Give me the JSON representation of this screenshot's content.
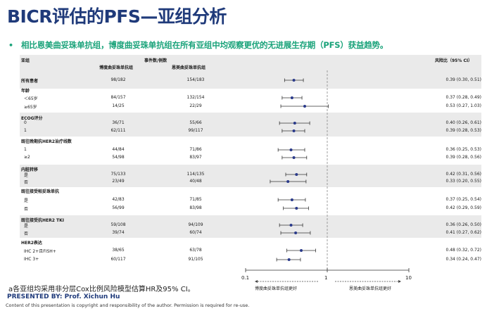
{
  "title": "BICR评估的PFS—亚组分析",
  "bullet": {
    "marker": "•",
    "text": "相比恩美曲妥珠单抗组，博度曲妥珠单抗组在所有亚组中均观察更优的无进展生存期（PFS）获益趋势。"
  },
  "table_header": {
    "subgroup": "亚组",
    "events": "事件数/例数",
    "arm1": "博度曲妥珠单抗组",
    "arm2": "恩美曲妥珠单抗组",
    "hr": "风险比（95% CI）"
  },
  "rows": [
    {
      "label": "所有患者",
      "bold": true,
      "arm1": "98/182",
      "arm2": "154/183",
      "hr_text": "0.39 (0.30, 0.51)",
      "band": 0
    },
    {
      "label": "年龄",
      "bold": true,
      "band": 1
    },
    {
      "label": "＜65岁",
      "arm1": "84/157",
      "arm2": "132/154",
      "hr_text": "0.37 (0.28, 0.49)",
      "band": 1
    },
    {
      "label": "≥65岁",
      "arm1": "14/25",
      "arm2": "22/29",
      "hr_text": "0.53 (0.27, 1.03)",
      "band": 1
    },
    {
      "label": "ECOG评分",
      "bold": true,
      "band": 2
    },
    {
      "label": "0",
      "arm1": "36/71",
      "arm2": "55/66",
      "hr_text": "0.40 (0.26, 0.61)",
      "band": 2
    },
    {
      "label": "1",
      "arm1": "62/111",
      "arm2": "99/117",
      "hr_text": "0.39 (0.28, 0.53)",
      "band": 2
    },
    {
      "label": "既往晚期抗HER2治疗线数",
      "bold": true,
      "band": 3
    },
    {
      "label": "1",
      "arm1": "44/84",
      "arm2": "71/86",
      "hr_text": "0.36 (0.25, 0.53)",
      "band": 3
    },
    {
      "label": "≥2",
      "arm1": "54/98",
      "arm2": "83/97",
      "hr_text": "0.39 (0.28, 0.56)",
      "band": 3
    },
    {
      "label": "内脏转移",
      "bold": true,
      "band": 4
    },
    {
      "label": "是",
      "arm1": "75/133",
      "arm2": "114/135",
      "hr_text": "0.42 (0.31, 0.56)",
      "band": 4
    },
    {
      "label": "否",
      "arm1": "23/49",
      "arm2": "40/48",
      "hr_text": "0.33 (0.20, 0.55)",
      "band": 4
    },
    {
      "label": "既往接受帕妥珠单抗",
      "bold": true,
      "band": 5
    },
    {
      "label": "是",
      "arm1": "42/83",
      "arm2": "71/85",
      "hr_text": "0.37 (0.25, 0.54)",
      "band": 5
    },
    {
      "label": "否",
      "arm1": "56/99",
      "arm2": "83/98",
      "hr_text": "0.42 (0.29, 0.59)",
      "band": 5
    },
    {
      "label": "既往接受抗HER2 TKI",
      "bold": true,
      "band": 6
    },
    {
      "label": "是",
      "arm1": "59/108",
      "arm2": "94/109",
      "hr_text": "0.36 (0.26, 0.50)",
      "band": 6
    },
    {
      "label": "否",
      "arm1": "39/74",
      "arm2": "60/74",
      "hr_text": "0.41 (0.27, 0.62)",
      "band": 6
    },
    {
      "label": "HER2表达",
      "bold": true,
      "band": 7
    },
    {
      "label": "IHC 2+且FISH+",
      "arm1": "38/65",
      "arm2": "63/78",
      "hr_text": "0.48 (0.32, 0.72)",
      "band": 7
    },
    {
      "label": "IHC 3+",
      "arm1": "60/117",
      "arm2": "91/105",
      "hr_text": "0.34 (0.24, 0.47)",
      "band": 7
    }
  ],
  "chart_data": {
    "type": "forest",
    "scale": "log",
    "xlim": [
      0.1,
      10
    ],
    "ticks": [
      "0.1",
      "1",
      "10"
    ],
    "reference_line": 1,
    "favor_left": "博度曲妥珠单抗组更好",
    "favor_right": "恩美曲妥珠单抗组更好",
    "points": [
      {
        "subgroup": "所有患者",
        "hr": 0.39,
        "lo": 0.3,
        "hi": 0.51
      },
      {
        "subgroup": "＜65岁",
        "hr": 0.37,
        "lo": 0.28,
        "hi": 0.49
      },
      {
        "subgroup": "≥65岁",
        "hr": 0.53,
        "lo": 0.27,
        "hi": 1.03
      },
      {
        "subgroup": "ECOG 0",
        "hr": 0.4,
        "lo": 0.26,
        "hi": 0.61
      },
      {
        "subgroup": "ECOG 1",
        "hr": 0.39,
        "lo": 0.28,
        "hi": 0.53
      },
      {
        "subgroup": "线数 1",
        "hr": 0.36,
        "lo": 0.25,
        "hi": 0.53
      },
      {
        "subgroup": "线数 ≥2",
        "hr": 0.39,
        "lo": 0.28,
        "hi": 0.56
      },
      {
        "subgroup": "内脏转移 是",
        "hr": 0.42,
        "lo": 0.31,
        "hi": 0.56
      },
      {
        "subgroup": "内脏转移 否",
        "hr": 0.33,
        "lo": 0.2,
        "hi": 0.55
      },
      {
        "subgroup": "帕妥珠单抗 是",
        "hr": 0.37,
        "lo": 0.25,
        "hi": 0.54
      },
      {
        "subgroup": "帕妥珠单抗 否",
        "hr": 0.42,
        "lo": 0.29,
        "hi": 0.59
      },
      {
        "subgroup": "TKI 是",
        "hr": 0.36,
        "lo": 0.26,
        "hi": 0.5
      },
      {
        "subgroup": "TKI 否",
        "hr": 0.41,
        "lo": 0.27,
        "hi": 0.62
      },
      {
        "subgroup": "IHC 2+且FISH+",
        "hr": 0.48,
        "lo": 0.32,
        "hi": 0.72
      },
      {
        "subgroup": "IHC 3+",
        "hr": 0.34,
        "lo": 0.24,
        "hi": 0.47
      }
    ]
  },
  "footnote": "a各亚组均采用非分层Cox比例风险模型估算HR及95% CI。",
  "presenter": "PRESENTED BY: Prof. Xichun Hu",
  "copyright": "Content of this presentation is copyright and responsibility of the author. Permission is required for re-use.",
  "colors": {
    "title": "#1f3a7a",
    "bullet": "#1aa37a",
    "band": "#eaeaea",
    "marker": "#2a3a8a"
  }
}
